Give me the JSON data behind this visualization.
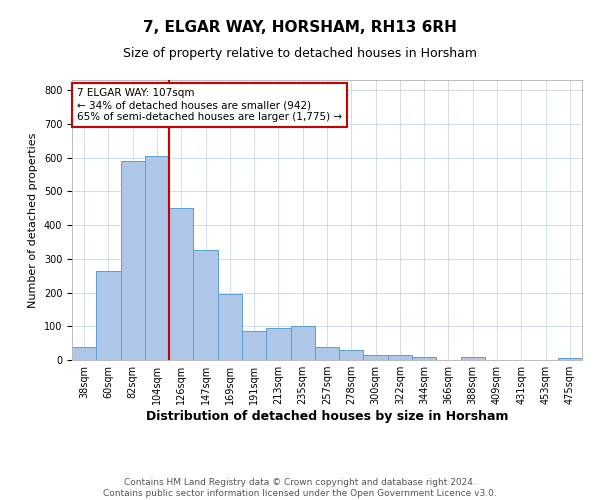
{
  "title": "7, ELGAR WAY, HORSHAM, RH13 6RH",
  "subtitle": "Size of property relative to detached houses in Horsham",
  "xlabel": "Distribution of detached houses by size in Horsham",
  "ylabel": "Number of detached properties",
  "footer_line1": "Contains HM Land Registry data © Crown copyright and database right 2024.",
  "footer_line2": "Contains public sector information licensed under the Open Government Licence v3.0.",
  "annotation_line1": "7 ELGAR WAY: 107sqm",
  "annotation_line2": "← 34% of detached houses are smaller (942)",
  "annotation_line3": "65% of semi-detached houses are larger (1,775) →",
  "categories": [
    "38sqm",
    "60sqm",
    "82sqm",
    "104sqm",
    "126sqm",
    "147sqm",
    "169sqm",
    "191sqm",
    "213sqm",
    "235sqm",
    "257sqm",
    "278sqm",
    "300sqm",
    "322sqm",
    "344sqm",
    "366sqm",
    "388sqm",
    "409sqm",
    "431sqm",
    "453sqm",
    "475sqm"
  ],
  "values": [
    38,
    265,
    590,
    605,
    450,
    325,
    197,
    87,
    95,
    100,
    38,
    30,
    15,
    15,
    10,
    0,
    8,
    0,
    0,
    0,
    7
  ],
  "bar_color": "#aec6e8",
  "bar_edge_color": "#5a9fd4",
  "redline_x": 3.5,
  "redline_color": "#cc0000",
  "annotation_box_color": "#ffffff",
  "annotation_box_edge": "#cc0000",
  "ylim": [
    0,
    830
  ],
  "yticks": [
    0,
    100,
    200,
    300,
    400,
    500,
    600,
    700,
    800
  ],
  "background_color": "#ffffff",
  "grid_color": "#d0dce8",
  "title_fontsize": 11,
  "subtitle_fontsize": 9,
  "xlabel_fontsize": 9,
  "ylabel_fontsize": 8,
  "tick_fontsize": 7,
  "annotation_fontsize": 7.5,
  "footer_fontsize": 6.5
}
